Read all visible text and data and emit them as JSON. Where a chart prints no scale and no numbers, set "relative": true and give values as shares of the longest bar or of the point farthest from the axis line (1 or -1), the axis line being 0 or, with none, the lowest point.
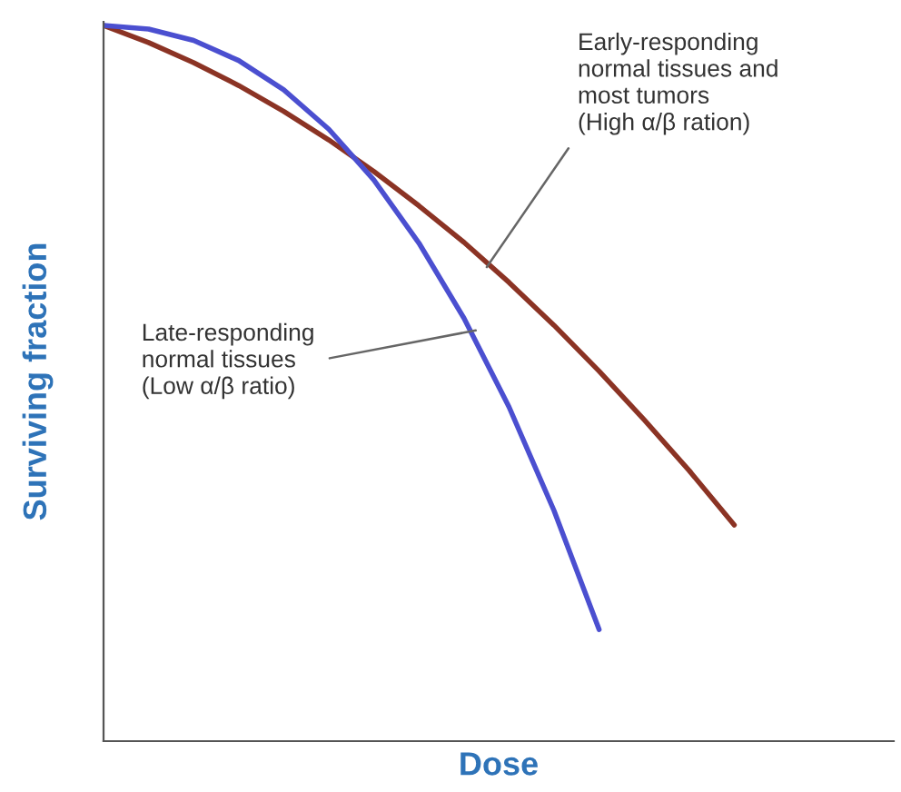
{
  "chart_data": {
    "type": "line",
    "relative": true,
    "xlabel": "Dose",
    "ylabel": "Surviving fraction",
    "categories": [
      null,
      null,
      null,
      null,
      null,
      null,
      null,
      null,
      null,
      null,
      null,
      null,
      null,
      null,
      null
    ],
    "series": [
      {
        "color": "#8b3324",
        "values": [
          1.0,
          0.976,
          0.948,
          0.916,
          0.88,
          0.84,
          0.796,
          0.748,
          0.697,
          0.641,
          0.581,
          0.517,
          0.449,
          0.378,
          0.302
        ]
      },
      {
        "color": "#4b4fd0",
        "values": [
          1.0,
          0.995,
          0.979,
          0.951,
          0.91,
          0.855,
          0.784,
          0.696,
          0.591,
          0.467,
          0.322,
          0.156,
          null,
          null,
          null
        ]
      }
    ],
    "annotations": [
      "Early-responding\nnormal tissues and\nmost tumors\n(High α/β ration)",
      "Late-responding\nnormal tissues\n(Low α/β ratio)"
    ],
    "marker": "none",
    "line_style": "solid"
  }
}
